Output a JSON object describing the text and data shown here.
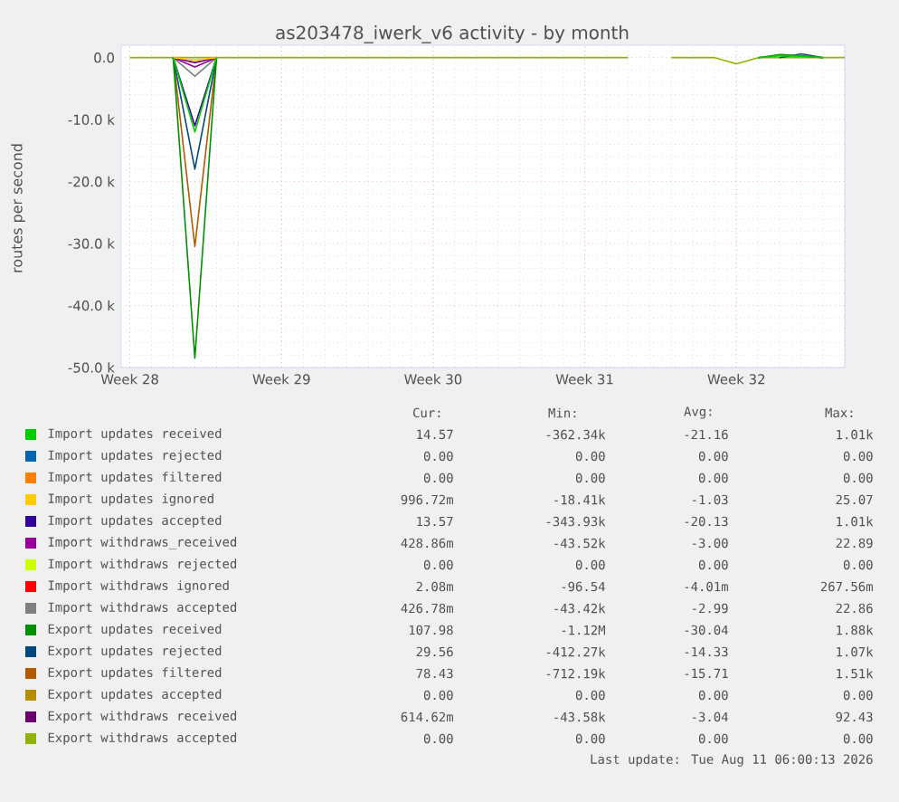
{
  "chart_data": {
    "type": "line",
    "title": "as203478_iwerk_v6 activity - by month",
    "ylabel": "routes per second",
    "categories": [
      "Week 28",
      null,
      null,
      null,
      null,
      null,
      null,
      "Week 29",
      null,
      null,
      null,
      null,
      null,
      null,
      "Week 30",
      null,
      null,
      null,
      null,
      null,
      null,
      "Week 31",
      null,
      null,
      null,
      null,
      null,
      null,
      "Week 32",
      null,
      null,
      null,
      null,
      null
    ],
    "ylim": [
      -50000,
      2000
    ],
    "yticks": [
      {
        "value": 0,
        "label": "0.0"
      },
      {
        "value": -10000,
        "label": "-10.0 k"
      },
      {
        "value": -20000,
        "label": "-20.0 k"
      },
      {
        "value": -30000,
        "label": "-30.0 k"
      },
      {
        "value": -40000,
        "label": "-40.0 k"
      },
      {
        "value": -50000,
        "label": "-50.0 k"
      }
    ],
    "grid": true,
    "legend": "bottom",
    "series": [
      {
        "name": "Import updates received",
        "color": "#00cc00",
        "values": [
          null,
          null,
          0,
          -12000,
          0,
          null,
          null,
          null,
          null,
          null,
          null,
          null,
          null,
          null,
          null,
          null,
          null,
          null,
          null,
          null,
          null,
          null,
          null,
          null,
          null,
          null,
          null,
          null,
          null,
          0,
          300,
          200,
          0,
          null
        ]
      },
      {
        "name": "Import updates rejected",
        "color": "#0066b3",
        "values": [
          null,
          null,
          null,
          null,
          null,
          null,
          null,
          null,
          null,
          null,
          null,
          null,
          null,
          null,
          null,
          null,
          null,
          null,
          null,
          null,
          null,
          null,
          null,
          null,
          null,
          null,
          null,
          null,
          null,
          null,
          null,
          null,
          null,
          null
        ]
      },
      {
        "name": "Import updates filtered",
        "color": "#ff8000",
        "values": [
          null,
          null,
          null,
          null,
          null,
          null,
          null,
          null,
          null,
          null,
          null,
          null,
          null,
          null,
          null,
          null,
          null,
          null,
          null,
          null,
          null,
          null,
          null,
          null,
          null,
          null,
          null,
          null,
          null,
          null,
          null,
          null,
          null,
          null
        ]
      },
      {
        "name": "Import updates ignored",
        "color": "#ffcc00",
        "values": [
          null,
          null,
          0,
          -400,
          0,
          null,
          null,
          null,
          null,
          null,
          null,
          null,
          null,
          null,
          null,
          null,
          null,
          null,
          null,
          null,
          null,
          null,
          null,
          null,
          null,
          null,
          null,
          null,
          null,
          null,
          null,
          null,
          null,
          null
        ]
      },
      {
        "name": "Import updates accepted",
        "color": "#330099",
        "values": [
          null,
          null,
          0,
          -11000,
          0,
          null,
          null,
          null,
          null,
          null,
          null,
          null,
          null,
          null,
          null,
          null,
          null,
          null,
          null,
          null,
          null,
          null,
          null,
          null,
          null,
          null,
          null,
          null,
          null,
          null,
          null,
          null,
          null,
          null
        ]
      },
      {
        "name": "Import withdraws_received",
        "color": "#990099",
        "values": [
          null,
          null,
          0,
          -1500,
          0,
          null,
          null,
          null,
          null,
          null,
          null,
          null,
          null,
          null,
          null,
          null,
          null,
          null,
          null,
          null,
          null,
          null,
          null,
          null,
          null,
          null,
          null,
          null,
          null,
          null,
          null,
          null,
          null,
          null
        ]
      },
      {
        "name": "Import withdraws rejected",
        "color": "#ccff00",
        "values": [
          null,
          null,
          null,
          null,
          null,
          null,
          null,
          null,
          null,
          null,
          null,
          null,
          null,
          null,
          null,
          null,
          null,
          null,
          null,
          null,
          null,
          null,
          null,
          null,
          null,
          null,
          null,
          null,
          null,
          null,
          null,
          null,
          null,
          null
        ]
      },
      {
        "name": "Import withdraws ignored",
        "color": "#ff0000",
        "values": [
          null,
          null,
          null,
          null,
          null,
          null,
          null,
          null,
          null,
          null,
          null,
          null,
          null,
          null,
          null,
          null,
          null,
          null,
          null,
          null,
          null,
          null,
          null,
          null,
          null,
          null,
          null,
          null,
          null,
          null,
          null,
          null,
          null,
          null
        ]
      },
      {
        "name": "Import withdraws accepted",
        "color": "#808080",
        "values": [
          null,
          null,
          0,
          -3000,
          0,
          null,
          null,
          null,
          null,
          null,
          null,
          null,
          null,
          null,
          null,
          null,
          null,
          null,
          null,
          null,
          null,
          null,
          null,
          null,
          null,
          null,
          null,
          null,
          null,
          null,
          null,
          null,
          null,
          null
        ]
      },
      {
        "name": "Export updates received",
        "color": "#008f00",
        "values": [
          null,
          null,
          0,
          -48500,
          0,
          null,
          null,
          null,
          null,
          null,
          null,
          null,
          null,
          null,
          null,
          null,
          null,
          null,
          null,
          null,
          null,
          null,
          null,
          null,
          null,
          null,
          null,
          null,
          null,
          0,
          500,
          300,
          0,
          null
        ]
      },
      {
        "name": "Export updates rejected",
        "color": "#00487d",
        "values": [
          null,
          null,
          0,
          -18000,
          0,
          null,
          null,
          null,
          null,
          null,
          null,
          null,
          null,
          null,
          null,
          null,
          null,
          null,
          null,
          null,
          null,
          null,
          null,
          null,
          null,
          null,
          null,
          null,
          null,
          null,
          0,
          600,
          0,
          null
        ]
      },
      {
        "name": "Export updates filtered",
        "color": "#b35a00",
        "values": [
          null,
          null,
          0,
          -30500,
          0,
          null,
          null,
          null,
          null,
          null,
          null,
          null,
          null,
          null,
          null,
          null,
          null,
          null,
          null,
          null,
          null,
          null,
          null,
          null,
          null,
          null,
          null,
          null,
          null,
          null,
          null,
          null,
          null,
          null
        ]
      },
      {
        "name": "Export updates accepted",
        "color": "#b38f00",
        "values": [
          null,
          null,
          null,
          null,
          null,
          null,
          null,
          null,
          null,
          null,
          null,
          null,
          null,
          null,
          null,
          null,
          null,
          null,
          null,
          null,
          null,
          null,
          null,
          null,
          null,
          null,
          null,
          null,
          null,
          null,
          null,
          null,
          null,
          null
        ]
      },
      {
        "name": "Export withdraws received",
        "color": "#6b006b",
        "values": [
          null,
          null,
          0,
          -800,
          0,
          null,
          null,
          null,
          null,
          null,
          null,
          null,
          null,
          null,
          null,
          null,
          null,
          null,
          null,
          null,
          null,
          null,
          null,
          null,
          null,
          null,
          null,
          null,
          null,
          null,
          null,
          null,
          null,
          null
        ]
      },
      {
        "name": "Export withdraws accepted",
        "color": "#8fb300",
        "values": [
          0,
          0,
          0,
          0,
          0,
          0,
          0,
          0,
          0,
          0,
          0,
          0,
          0,
          0,
          0,
          0,
          0,
          0,
          0,
          0,
          0,
          0,
          0,
          0,
          null,
          0,
          0,
          0,
          -1000,
          0,
          0,
          0,
          0,
          0
        ]
      }
    ],
    "annotations": [
      "Cur:",
      "Min:",
      "Avg:",
      "Max:",
      "14.57",
      "-362.34k",
      "-21.16",
      "1.01k",
      "0.00",
      "0.00",
      "0.00",
      "0.00",
      "0.00",
      "0.00",
      "0.00",
      "0.00",
      "996.72m",
      "-18.41k",
      "-1.03",
      "25.07",
      "13.57",
      "-343.93k",
      "-20.13",
      "1.01k",
      "428.86m",
      "-43.52k",
      "-3.00",
      "22.89",
      "0.00",
      "0.00",
      "0.00",
      "0.00",
      "2.08m",
      "-96.54",
      "-4.01m",
      "267.56m",
      "426.78m",
      "-43.42k",
      "-2.99",
      "22.86",
      "107.98",
      "-1.12M",
      "-30.04",
      "1.88k",
      "29.56",
      "-412.27k",
      "-14.33",
      "1.07k",
      "78.43",
      "-712.19k",
      "-15.71",
      "1.51k",
      "0.00",
      "0.00",
      "0.00",
      "0.00",
      "614.62m",
      "-43.58k",
      "-3.04",
      "92.43",
      "0.00",
      "0.00",
      "0.00",
      "0.00",
      "Last update: Tue Aug 11 06:00:13 2026"
    ]
  }
}
